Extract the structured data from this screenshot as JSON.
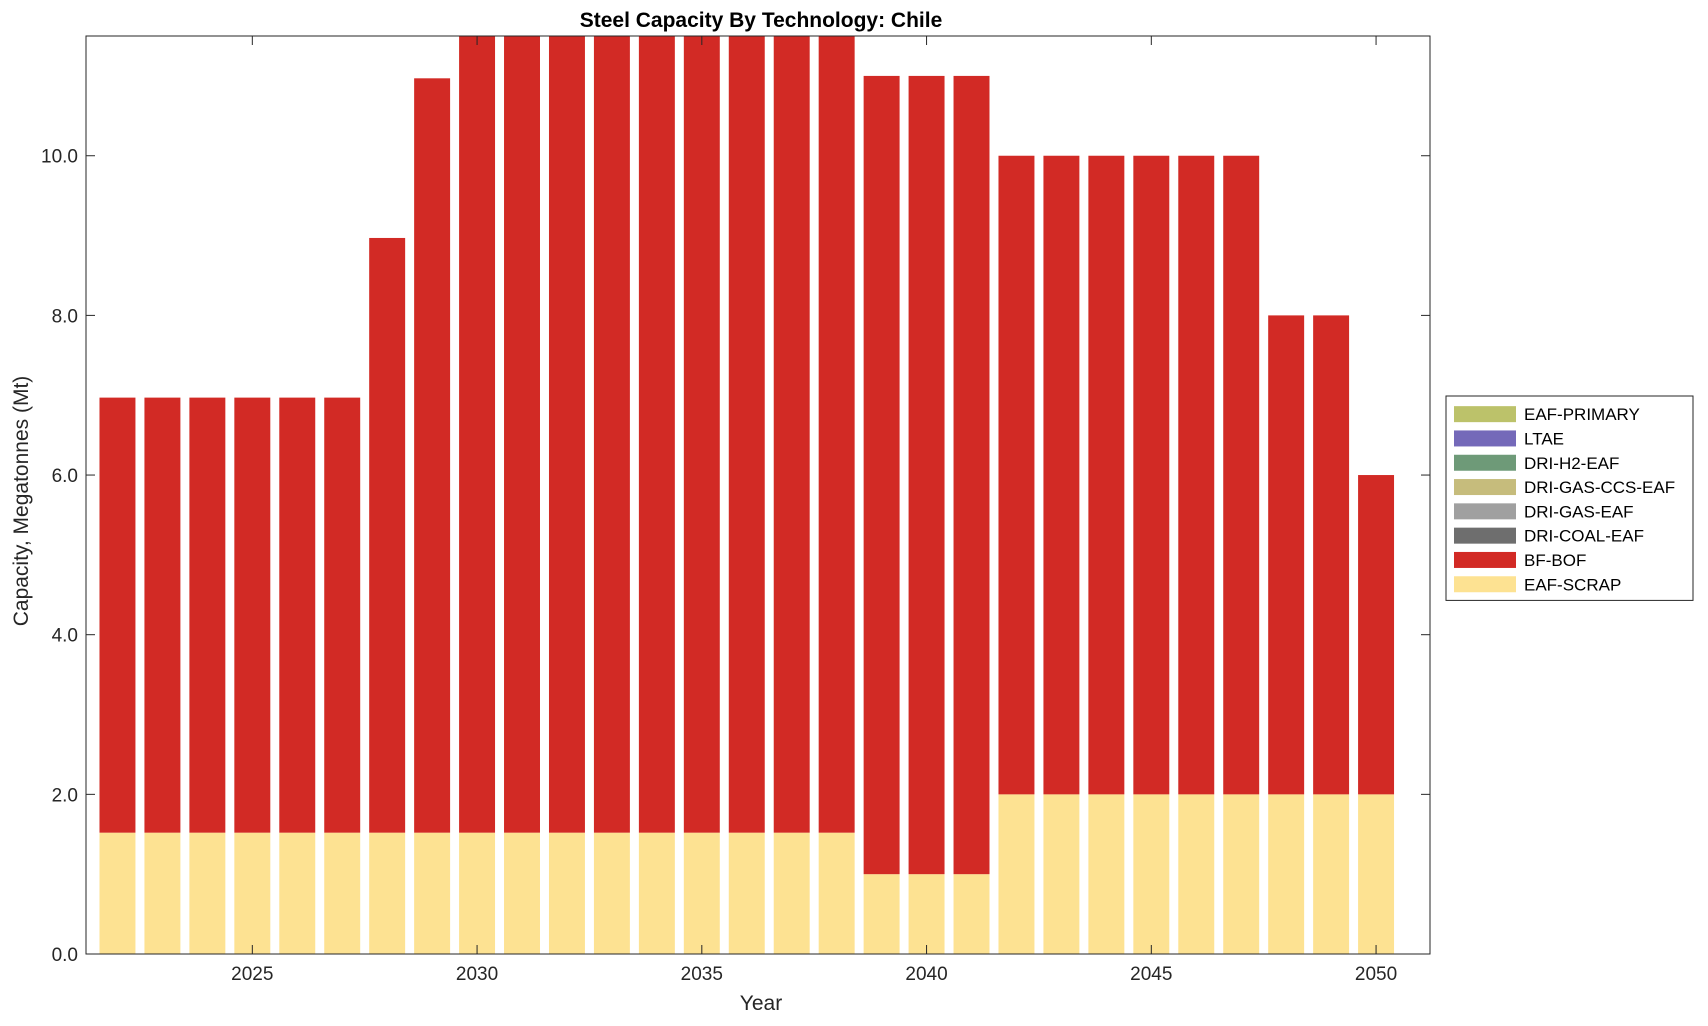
{
  "chart_data": {
    "type": "bar",
    "stacked": true,
    "title": "Steel Capacity By Technology: Chile",
    "xlabel": "Year",
    "ylabel": "Capacity, Megatonnes (Mt)",
    "x": [
      2022,
      2023,
      2024,
      2025,
      2026,
      2027,
      2028,
      2029,
      2030,
      2031,
      2032,
      2033,
      2034,
      2035,
      2036,
      2037,
      2038,
      2039,
      2040,
      2041,
      2042,
      2043,
      2044,
      2045,
      2046,
      2047,
      2048,
      2049,
      2050
    ],
    "xticks": [
      2025,
      2030,
      2035,
      2040,
      2045,
      2050
    ],
    "xtick_labels": [
      "2025",
      "2030",
      "2035",
      "2040",
      "2045",
      "2050"
    ],
    "xlim": [
      2021.3,
      2051.2
    ],
    "yticks": [
      0,
      2,
      4,
      6,
      8,
      10
    ],
    "ytick_labels": [
      "0.0",
      "2.0",
      "4.0",
      "6.0",
      "8.0",
      "10.0"
    ],
    "ylim": [
      0,
      11.5
    ],
    "grid": false,
    "legend_position": "outside-right",
    "series": [
      {
        "name": "EAF-PRIMARY",
        "color": "#bcc26a",
        "values": [
          0,
          0,
          0,
          0,
          0,
          0,
          0,
          0,
          0,
          0,
          0,
          0,
          0,
          0,
          0,
          0,
          0,
          0,
          0,
          0,
          0,
          0,
          0,
          0,
          0,
          0,
          0,
          0,
          0
        ]
      },
      {
        "name": "LTAE",
        "color": "#7469b9",
        "values": [
          0,
          0,
          0,
          0,
          0,
          0,
          0,
          0,
          0,
          0,
          0,
          0,
          0,
          0,
          0,
          0,
          0,
          0,
          0,
          0,
          0,
          0,
          0,
          0,
          0,
          0,
          0,
          0,
          0
        ]
      },
      {
        "name": "DRI-H2-EAF",
        "color": "#6e9a78",
        "values": [
          0,
          0,
          0,
          0,
          0,
          0,
          0,
          0,
          0,
          0,
          0,
          0,
          0,
          0,
          0,
          0,
          0,
          0,
          0,
          0,
          0,
          0,
          0,
          0,
          0,
          0,
          0,
          0,
          0
        ]
      },
      {
        "name": "DRI-GAS-CCS-EAF",
        "color": "#c6bc7c",
        "values": [
          0,
          0,
          0,
          0,
          0,
          0,
          0,
          0,
          0,
          0,
          0,
          0,
          0,
          0,
          0,
          0,
          0,
          0,
          0,
          0,
          0,
          0,
          0,
          0,
          0,
          0,
          0,
          0,
          0
        ]
      },
      {
        "name": "DRI-GAS-EAF",
        "color": "#a0a0a0",
        "values": [
          0,
          0,
          0,
          0,
          0,
          0,
          0,
          0,
          0,
          0,
          0,
          0,
          0,
          0,
          0,
          0,
          0,
          0,
          0,
          0,
          0,
          0,
          0,
          0,
          0,
          0,
          0,
          0,
          0
        ]
      },
      {
        "name": "DRI-COAL-EAF",
        "color": "#6e6e6e",
        "values": [
          0,
          0,
          0,
          0,
          0,
          0,
          0,
          0,
          0,
          0,
          0,
          0,
          0,
          0,
          0,
          0,
          0,
          0,
          0,
          0,
          0,
          0,
          0,
          0,
          0,
          0,
          0,
          0,
          0
        ]
      },
      {
        "name": "BF-BOF",
        "color": "#d22a25",
        "values": [
          5.45,
          5.45,
          5.45,
          5.45,
          5.45,
          5.45,
          7.45,
          9.45,
          10.0,
          10.0,
          10.0,
          10.0,
          10.0,
          10.0,
          10.0,
          10.0,
          10.0,
          10.0,
          10.0,
          10.0,
          8.0,
          8.0,
          8.0,
          8.0,
          8.0,
          8.0,
          6.0,
          6.0,
          4.0
        ]
      },
      {
        "name": "EAF-SCRAP",
        "color": "#fde292",
        "values": [
          1.52,
          1.52,
          1.52,
          1.52,
          1.52,
          1.52,
          1.52,
          1.52,
          1.52,
          1.52,
          1.52,
          1.52,
          1.52,
          1.52,
          1.52,
          1.52,
          1.52,
          1.0,
          1.0,
          1.0,
          2.0,
          2.0,
          2.0,
          2.0,
          2.0,
          2.0,
          2.0,
          2.0,
          2.0
        ]
      }
    ],
    "stack_order": [
      "EAF-SCRAP",
      "BF-BOF",
      "DRI-COAL-EAF",
      "DRI-GAS-EAF",
      "DRI-GAS-CCS-EAF",
      "DRI-H2-EAF",
      "LTAE",
      "EAF-PRIMARY"
    ]
  }
}
